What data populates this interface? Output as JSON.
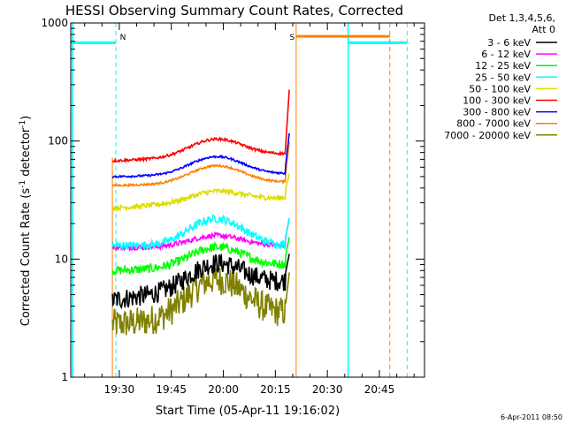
{
  "chart_data": {
    "type": "line",
    "title": "HESSI Observing Summary Count Rates, Corrected",
    "xlabel": "Start Time (05-Apr-11 19:16:02)",
    "ylabel_main": "Corrected Count Rate (s",
    "ylabel_sup1": "-1",
    "ylabel_mid": " detector",
    "ylabel_sup2": "-1",
    "ylabel_end": ")",
    "x_range_minutes": [
      0,
      102
    ],
    "ylim": [
      1,
      1000
    ],
    "log_y": true,
    "x_ticks": [
      {
        "label": "19:30",
        "minute": 14
      },
      {
        "label": "19:45",
        "minute": 29
      },
      {
        "label": "20:00",
        "minute": 44
      },
      {
        "label": "20:15",
        "minute": 59
      },
      {
        "label": "20:30",
        "minute": 74
      },
      {
        "label": "20:45",
        "minute": 89
      }
    ],
    "y_ticks": [
      {
        "label": "1",
        "value": 1
      },
      {
        "label": "10",
        "value": 10
      },
      {
        "label": "100",
        "value": 100
      },
      {
        "label": "1000",
        "value": 1000
      }
    ],
    "legend_header": [
      "Det 1,3,4,5,6,",
      "Att 0"
    ],
    "legend_placement": "right",
    "timestamp": "6-Apr-2011 08:50",
    "flag_labels": [
      {
        "text": "N",
        "color": "#00ffff"
      },
      {
        "text": "S",
        "color": "#ff8000"
      }
    ],
    "series": [
      {
        "name": "3 - 6 keV",
        "color": "#000000",
        "start": 4.5,
        "peak": 10,
        "end": 6.5,
        "noise": 0.2
      },
      {
        "name": "6 - 12 keV",
        "color": "#ff00ff",
        "start": 12.5,
        "peak": 16,
        "end": 13,
        "noise": 0.05
      },
      {
        "name": "12 - 25 keV",
        "color": "#00ff00",
        "start": 8,
        "peak": 13,
        "end": 9,
        "noise": 0.09
      },
      {
        "name": "25 - 50 keV",
        "color": "#00ffff",
        "start": 13,
        "peak": 22,
        "end": 13,
        "noise": 0.08
      },
      {
        "name": "50 - 100 keV",
        "color": "#dddd00",
        "start": 27,
        "peak": 40,
        "end": 33,
        "noise": 0.05
      },
      {
        "name": "100 - 300 keV",
        "color": "#ff0000",
        "start": 68,
        "peak": 108,
        "end": 78,
        "noise": 0.025
      },
      {
        "name": "300 - 800 keV",
        "color": "#0000ff",
        "start": 50,
        "peak": 75,
        "end": 53,
        "noise": 0.02
      },
      {
        "name": "800 - 7000 keV",
        "color": "#ff8000",
        "start": 42,
        "peak": 63,
        "end": 45,
        "noise": 0.02
      },
      {
        "name": "7000 - 20000 keV",
        "color": "#808000",
        "start": 2.8,
        "peak": 7,
        "end": 3.5,
        "noise": 0.3
      }
    ],
    "spike_minutes": [
      62,
      63
    ],
    "data_minutes": [
      12,
      62
    ]
  }
}
